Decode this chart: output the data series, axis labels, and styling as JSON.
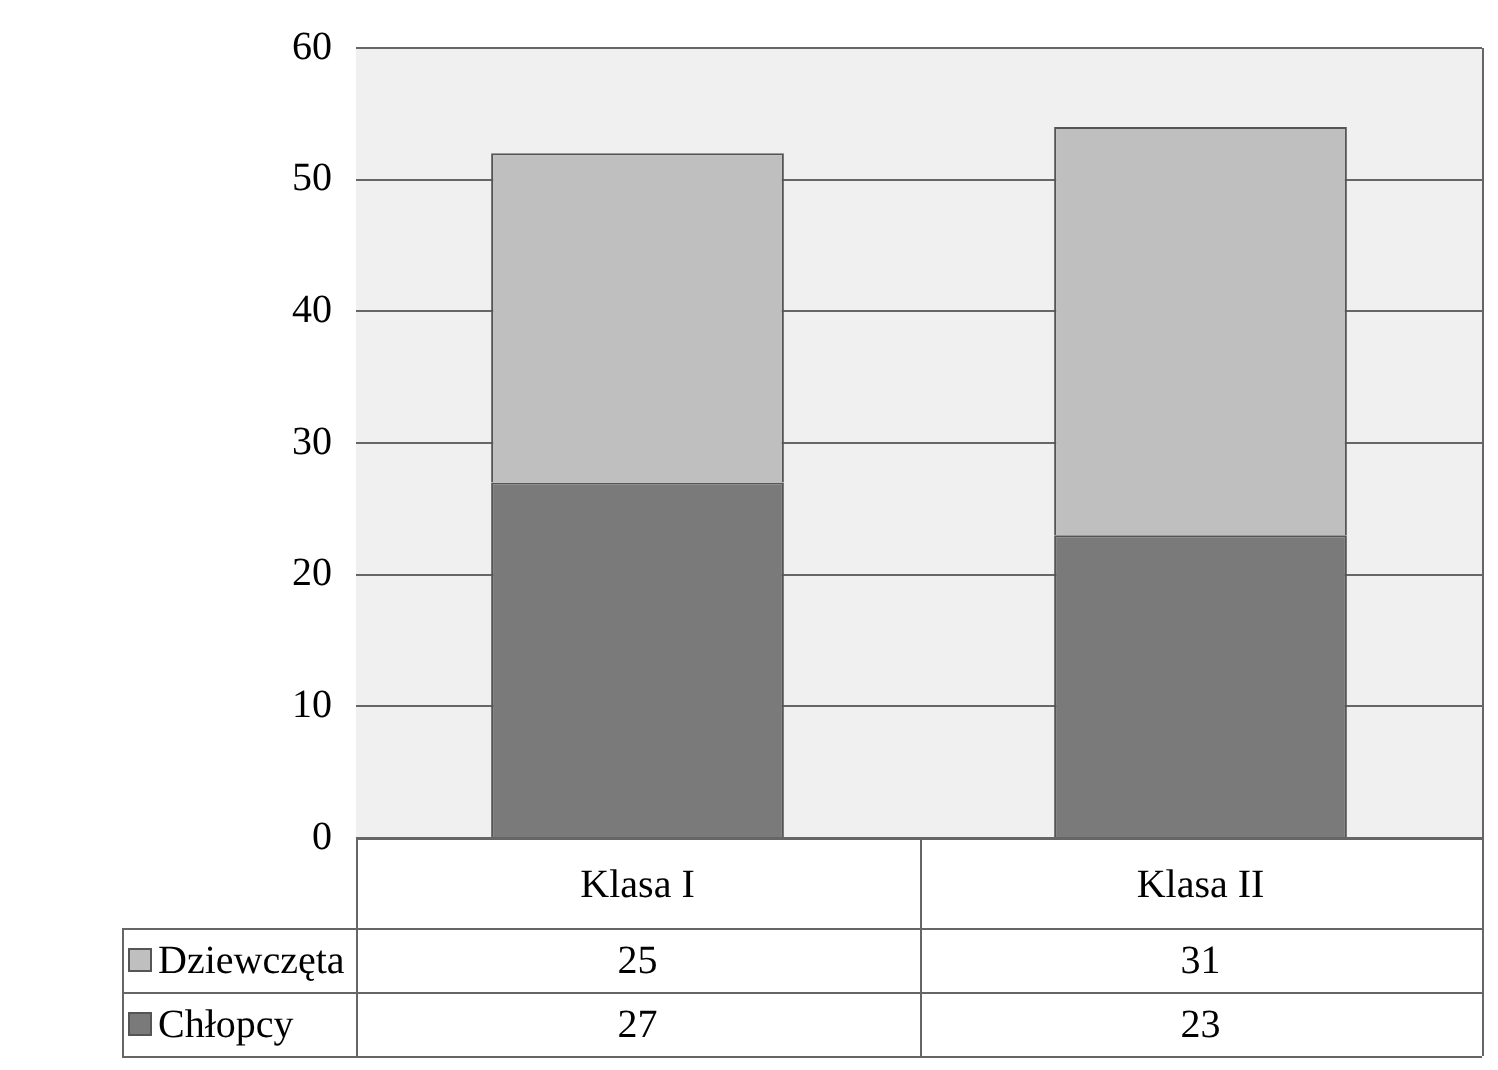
{
  "chart_data": {
    "type": "bar",
    "stacked": true,
    "categories": [
      "Klasa I",
      "Klasa II"
    ],
    "series": [
      {
        "name": "Chłopcy",
        "color": "#7a7a7a",
        "values": [
          27,
          23
        ]
      },
      {
        "name": "Dziewczęta",
        "color": "#bfbfbf",
        "values": [
          25,
          31
        ]
      }
    ],
    "ylim": [
      0,
      60
    ],
    "yticks": [
      0,
      10,
      20,
      30,
      40,
      50,
      60
    ],
    "grid": "y",
    "legend": "bottom left",
    "data_labels": true
  }
}
